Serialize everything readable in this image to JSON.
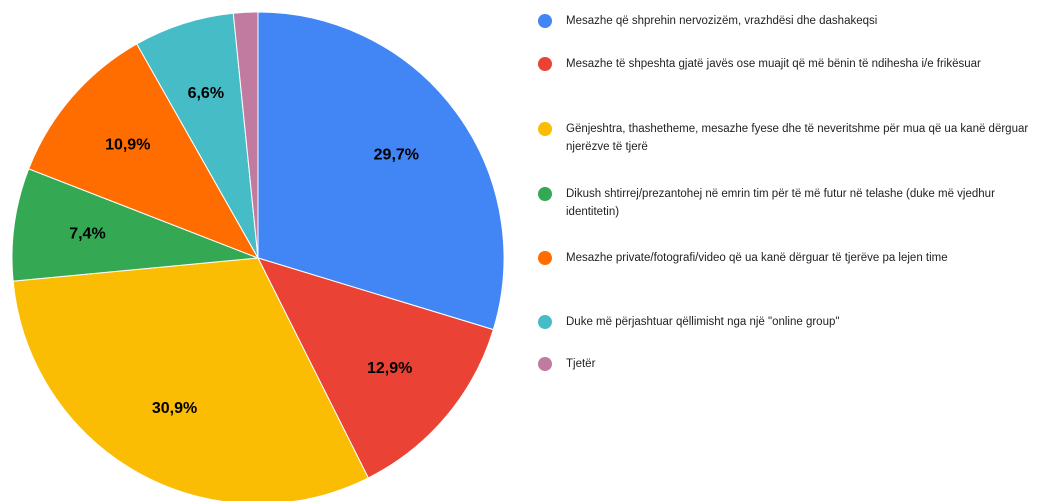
{
  "chart_data": {
    "type": "pie",
    "categories": [
      "Mesazhe që shprehin nervozizëm, vrazhdësi dhe dashakeqsi",
      "Mesazhe të shpeshta gjatë javës ose muajit që më bënin të ndihesha i/e frikësuar",
      "Gënjeshtra, thashetheme, mesazhe fyese dhe të neveritshme për mua që ua kanë dërguar njerëzve të tjerë",
      "Dikush shtirrej/prezantohej në emrin tim për të më futur në telashe (duke më vjedhur identitetin)",
      "Mesazhe private/fotografi/video që ua kanë dërguar të tjerëve pa lejen time",
      "Duke më përjashtuar qëllimisht nga një \"online group\"",
      "Tjetër"
    ],
    "values": [
      29.7,
      12.9,
      30.9,
      7.4,
      10.9,
      6.6,
      1.6
    ],
    "value_labels": [
      "29,7%",
      "12,9%",
      "30,9%",
      "7,4%",
      "10,9%",
      "6,6%",
      null
    ],
    "colors": [
      "#4285f4",
      "#ea4335",
      "#fbbc04",
      "#34a853",
      "#ff6d01",
      "#46bdc6",
      "#c27ba0"
    ],
    "legend": "right"
  }
}
